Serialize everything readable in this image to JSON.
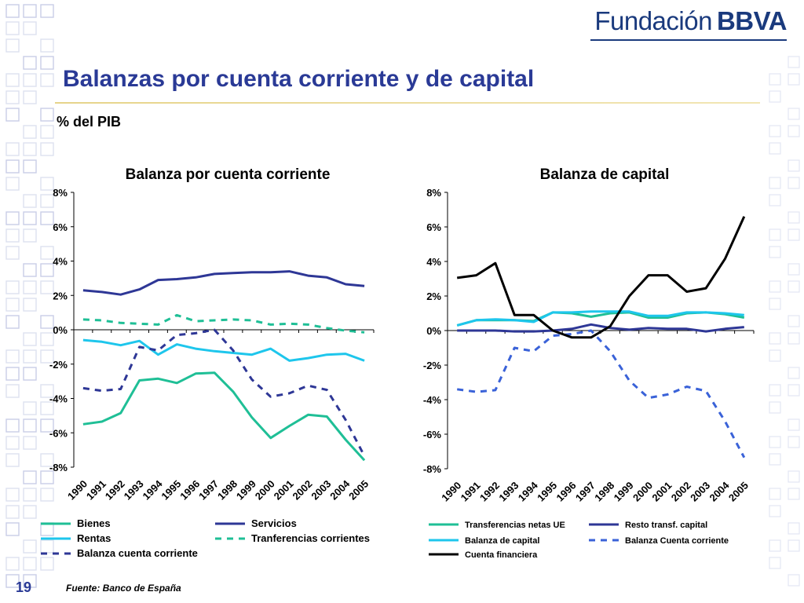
{
  "header": {
    "brand_prefix": "Fundación",
    "brand_bold": "BBVA",
    "title": "Balanzas por cuenta corriente y de capital",
    "subtitle": "% del PIB"
  },
  "footer": {
    "page_number": "19",
    "source": "Fuente:  Banco de España"
  },
  "colors": {
    "title": "#2a3a96",
    "brand": "#1a3a7d",
    "bienes": "#1fbf96",
    "servicios": "#2e3796",
    "rentas": "#1ec6ec",
    "transferencias": "#1fbf96",
    "balanza_cc": "#2e3796",
    "cc_capital_chart": "#3a62d8",
    "cuenta_financiera": "#000000"
  },
  "chart_data": [
    {
      "type": "line",
      "title": "Balanza por cuenta corriente",
      "x": [
        "1990",
        "1991",
        "1992",
        "1993",
        "1994",
        "1995",
        "1996",
        "1997",
        "1998",
        "1999",
        "2000",
        "2001",
        "2002",
        "2003",
        "2004",
        "2005"
      ],
      "ylim": [
        -8,
        8
      ],
      "yticks": [
        "8%",
        "6%",
        "4%",
        "2%",
        "0%",
        "-2%",
        "-4%",
        "-6%",
        "-8%"
      ],
      "ytick_values": [
        8,
        6,
        4,
        2,
        0,
        -2,
        -4,
        -6,
        -8
      ],
      "grid": false,
      "legend_position": "bottom",
      "series": [
        {
          "name": "Bienes",
          "style": "solid",
          "color": "#1fbf96",
          "values": [
            -5.5,
            -5.35,
            -4.85,
            -2.95,
            -2.85,
            -3.1,
            -2.55,
            -2.5,
            -3.6,
            -5.1,
            -6.3,
            -5.6,
            -4.95,
            -5.05,
            -6.4,
            -7.6
          ]
        },
        {
          "name": "Servicios",
          "style": "solid",
          "color": "#2e3796",
          "values": [
            2.3,
            2.2,
            2.05,
            2.35,
            2.9,
            2.95,
            3.05,
            3.25,
            3.3,
            3.35,
            3.35,
            3.4,
            3.15,
            3.05,
            2.65,
            2.55
          ]
        },
        {
          "name": "Rentas",
          "style": "solid",
          "color": "#1ec6ec",
          "values": [
            -0.6,
            -0.7,
            -0.9,
            -0.65,
            -1.45,
            -0.85,
            -1.1,
            -1.25,
            -1.35,
            -1.45,
            -1.1,
            -1.8,
            -1.65,
            -1.45,
            -1.4,
            -1.8
          ]
        },
        {
          "name": "Tranferencias corrientes",
          "style": "dashed",
          "color": "#1fbf96",
          "values": [
            0.6,
            0.55,
            0.4,
            0.35,
            0.3,
            0.85,
            0.5,
            0.55,
            0.6,
            0.55,
            0.3,
            0.35,
            0.3,
            0.1,
            -0.05,
            -0.15
          ]
        },
        {
          "name": "Balanza cuenta corriente",
          "style": "dashed",
          "color": "#2e3796",
          "values": [
            -3.4,
            -3.55,
            -3.45,
            -1.0,
            -1.2,
            -0.3,
            -0.2,
            0.0,
            -1.2,
            -2.9,
            -3.9,
            -3.7,
            -3.25,
            -3.5,
            -5.25,
            -7.35
          ]
        }
      ]
    },
    {
      "type": "line",
      "title": "Balanza de capital",
      "x": [
        "1990",
        "1991",
        "1992",
        "1993",
        "1994",
        "1995",
        "1996",
        "1997",
        "1998",
        "1999",
        "2000",
        "2001",
        "2002",
        "2003",
        "2004",
        "2005"
      ],
      "ylim": [
        -8,
        8
      ],
      "yticks": [
        "8%",
        "6%",
        "4%",
        "2%",
        "0%",
        "-2%",
        "-4%",
        "-6%",
        "-8%"
      ],
      "ytick_values": [
        8,
        6,
        4,
        2,
        0,
        -2,
        -4,
        -6,
        -8
      ],
      "grid": false,
      "legend_position": "bottom",
      "series": [
        {
          "name": "Transferencias netas UE",
          "style": "solid",
          "color": "#1fbf96",
          "values": [
            0.3,
            0.6,
            0.6,
            0.6,
            0.55,
            1.05,
            1.0,
            0.8,
            1.0,
            1.05,
            0.75,
            0.75,
            1.0,
            1.05,
            0.95,
            0.75
          ]
        },
        {
          "name": "Resto transf. capital",
          "style": "solid",
          "color": "#2e3796",
          "values": [
            0.0,
            0.0,
            0.0,
            -0.05,
            -0.05,
            0.0,
            0.1,
            0.35,
            0.15,
            0.05,
            0.15,
            0.1,
            0.1,
            -0.05,
            0.1,
            0.2
          ]
        },
        {
          "name": "Balanza de capital",
          "style": "solid",
          "color": "#1ec6ec",
          "values": [
            0.3,
            0.6,
            0.65,
            0.6,
            0.5,
            1.05,
            1.05,
            1.1,
            1.1,
            1.1,
            0.85,
            0.85,
            1.05,
            1.05,
            1.0,
            0.9
          ]
        },
        {
          "name": "Balanza Cuenta corriente",
          "style": "dashed",
          "color": "#3a62d8",
          "values": [
            -3.4,
            -3.55,
            -3.45,
            -1.0,
            -1.2,
            -0.3,
            -0.2,
            0.0,
            -1.2,
            -2.9,
            -3.9,
            -3.7,
            -3.25,
            -3.5,
            -5.25,
            -7.35
          ]
        },
        {
          "name": "Cuenta financiera",
          "style": "solid",
          "color": "#000000",
          "values": [
            3.05,
            3.2,
            3.9,
            0.9,
            0.9,
            0.0,
            -0.4,
            -0.4,
            0.25,
            2.0,
            3.2,
            3.2,
            2.25,
            2.45,
            4.15,
            6.6
          ]
        }
      ]
    }
  ]
}
